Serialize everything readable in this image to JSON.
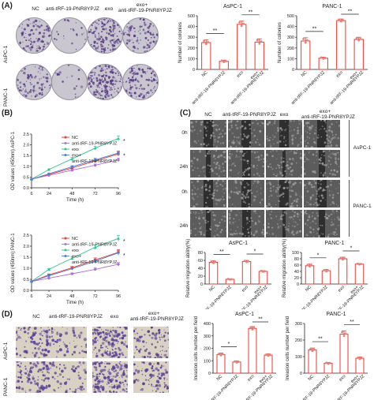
{
  "panels": {
    "A": "(A)",
    "B": "(B)",
    "C": "(C)",
    "D": "(D)"
  },
  "panel_a": {
    "columns": [
      "NC",
      "anti-tRF-19-PNR8YPJZ",
      "exo",
      "exo+",
      "anti-tRF-19-PNR8YPJZ"
    ],
    "rows": [
      "AsPC-1",
      "PANC-1"
    ]
  },
  "panel_c": {
    "columns": [
      "NC",
      "anti-tRF-19-PNR8YPJZ",
      "exo",
      "exo+",
      "anti-tRF-19-PNR8YPJZ"
    ],
    "times": [
      "0h",
      "24h",
      "0h",
      "24h"
    ],
    "cells": [
      "AsPC-1",
      "PANC-1"
    ]
  },
  "panel_d": {
    "columns": [
      "NC",
      "anti-tRF-19-PNR8YPJZ",
      "exo",
      "exo+",
      "anti-tRF-19-PNR8YPJZ"
    ],
    "rows": [
      "AsPC-1",
      "PANC-1"
    ]
  },
  "colors": {
    "bar": "#e83a30",
    "nc": "#e83a30",
    "anti": "#b06fd8",
    "exo": "#2ec48a",
    "combo": "#4a7fd6",
    "dot": "#e2857c"
  },
  "chart_data": [
    {
      "id": "colony-aspc1",
      "type": "bar",
      "title": "AsPC-1",
      "ylabel": "Number of colonies",
      "categories": [
        "NC",
        "anti-tRF-19-PNR8YPJZ",
        "exo",
        "exo+ anti-tRF-19-PNR8YPJZ"
      ],
      "values": [
        250,
        75,
        420,
        255
      ],
      "errors": [
        25,
        12,
        30,
        30
      ],
      "ylim": [
        0,
        500
      ],
      "yticks": [
        0,
        100,
        200,
        300,
        400,
        500
      ],
      "sig": [
        {
          "from": 0,
          "to": 1,
          "label": "**"
        },
        {
          "from": 2,
          "to": 3,
          "label": "**"
        }
      ]
    },
    {
      "id": "colony-panc1",
      "type": "bar",
      "title": "PANC-1",
      "ylabel": "Number of colonies",
      "categories": [
        "NC",
        "anti-tRF-19-PNR8YPJZ",
        "exo",
        "exo+ anti-tRF-19-PNR8YPJZ"
      ],
      "values": [
        265,
        105,
        455,
        280
      ],
      "errors": [
        30,
        10,
        15,
        20
      ],
      "ylim": [
        0,
        500
      ],
      "yticks": [
        0,
        100,
        200,
        300,
        400,
        500
      ],
      "sig": [
        {
          "from": 0,
          "to": 1,
          "label": "**"
        },
        {
          "from": 2,
          "to": 3,
          "label": "**"
        }
      ]
    },
    {
      "id": "growth-aspc1",
      "type": "line",
      "ylabel": "OD values (450nm) AsPC-1",
      "xlabel": "Time (h)",
      "x": [
        6,
        24,
        48,
        72,
        96
      ],
      "xlim": [
        6,
        96
      ],
      "ylim": [
        0,
        2.5
      ],
      "yticks": [
        0.0,
        0.5,
        1.0,
        1.5,
        2.0,
        2.5
      ],
      "legend": [
        "NC",
        "anti-tRF-19-PNR8YPJZ",
        "exo",
        "exo+",
        "anti-tRF-19-PNR8YPJZ"
      ],
      "series": [
        {
          "name": "NC",
          "values": [
            0.4,
            0.62,
            0.92,
            1.25,
            1.58
          ],
          "err": 0.1
        },
        {
          "name": "anti-tRF-19-PNR8YPJZ",
          "values": [
            0.4,
            0.58,
            0.82,
            1.05,
            1.3
          ],
          "err": 0.08
        },
        {
          "name": "exo",
          "values": [
            0.4,
            0.85,
            1.35,
            1.85,
            2.3
          ],
          "err": 0.12
        },
        {
          "name": "exo+ anti-tRF-19-PNR8YPJZ",
          "values": [
            0.4,
            0.65,
            0.98,
            1.3,
            1.62
          ],
          "err": 0.1
        }
      ],
      "sig": [
        "*",
        "*"
      ]
    },
    {
      "id": "growth-panc1",
      "type": "line",
      "ylabel": "OD values (450nm) PANC-1",
      "xlabel": "Time (h)",
      "x": [
        6,
        24,
        48,
        72,
        96
      ],
      "xlim": [
        6,
        96
      ],
      "ylim": [
        0,
        2.5
      ],
      "yticks": [
        0.0,
        0.5,
        1.0,
        1.5,
        2.0,
        2.5
      ],
      "legend": [
        "NC",
        "anti-tRF-19-PNR8YPJZ",
        "exo",
        "exo+",
        "anti-tRF-19-PNR8YPJZ"
      ],
      "series": [
        {
          "name": "NC",
          "values": [
            0.4,
            0.7,
            1.02,
            1.38,
            1.72
          ],
          "err": 0.12
        },
        {
          "name": "anti-tRF-19-PNR8YPJZ",
          "values": [
            0.4,
            0.55,
            0.75,
            0.95,
            1.18
          ],
          "err": 0.08
        },
        {
          "name": "exo",
          "values": [
            0.4,
            0.95,
            1.45,
            1.95,
            2.35
          ],
          "err": 0.14
        },
        {
          "name": "exo+ anti-tRF-19-PNR8YPJZ",
          "values": [
            0.4,
            0.66,
            0.98,
            1.32,
            1.7
          ],
          "err": 0.1
        }
      ],
      "sig": [
        "*",
        "*"
      ]
    },
    {
      "id": "migration-aspc1",
      "type": "bar",
      "title": "AsPC-1",
      "ylabel": "Relative migration ability(%)",
      "categories": [
        "NC",
        "anti-tRF-19-PNR8YPJZ",
        "exo",
        "exo+ anti-tRF-19-PNR8YPJZ"
      ],
      "values": [
        55,
        12,
        57,
        32
      ],
      "errors": [
        4,
        1.5,
        3,
        2
      ],
      "ylim": [
        0,
        80
      ],
      "yticks": [
        0,
        20,
        40,
        60,
        80
      ],
      "sig": [
        {
          "from": 0,
          "to": 1,
          "label": "**"
        },
        {
          "from": 2,
          "to": 3,
          "label": "*"
        }
      ]
    },
    {
      "id": "migration-panc1",
      "type": "bar",
      "title": "PANC-1",
      "ylabel": "Relative migration ability(%)",
      "categories": [
        "NC",
        "anti-tRF-19-PNR8YPJZ",
        "exo",
        "exo+ anti-tRF-19-PNR8YPJZ"
      ],
      "values": [
        58,
        42,
        80,
        63
      ],
      "errors": [
        5,
        4,
        5,
        2
      ],
      "ylim": [
        0,
        100
      ],
      "yticks": [
        0,
        20,
        40,
        60,
        80,
        100
      ],
      "sig": [
        {
          "from": 0,
          "to": 1,
          "label": "*"
        },
        {
          "from": 2,
          "to": 3,
          "label": "*"
        }
      ]
    },
    {
      "id": "invasion-aspc1",
      "type": "bar",
      "title": "AsPC-1",
      "ylabel": "Invasion cells number per field",
      "categories": [
        "NC",
        "anti-tRF-19-PNR8YPJZ",
        "exo",
        "exo+ anti-tRF-19-PNR8YPJZ"
      ],
      "values": [
        150,
        90,
        360,
        145
      ],
      "errors": [
        12,
        8,
        15,
        10
      ],
      "ylim": [
        0,
        400
      ],
      "yticks": [
        0,
        100,
        200,
        300,
        400
      ],
      "sig": [
        {
          "from": 0,
          "to": 1,
          "label": "*"
        },
        {
          "from": 2,
          "to": 3,
          "label": "**"
        }
      ]
    },
    {
      "id": "invasion-panc1",
      "type": "bar",
      "title": "PANC-1",
      "ylabel": "Invasion cells number per field",
      "categories": [
        "NC",
        "anti-tRF-19-PNR8YPJZ",
        "exo",
        "exo+ anti-tRF-19-PNR8YPJZ"
      ],
      "values": [
        140,
        60,
        235,
        90
      ],
      "errors": [
        12,
        5,
        20,
        8
      ],
      "ylim": [
        0,
        300
      ],
      "yticks": [
        0,
        100,
        200,
        300
      ],
      "sig": [
        {
          "from": 0,
          "to": 1,
          "label": "**"
        },
        {
          "from": 2,
          "to": 3,
          "label": "**"
        }
      ]
    }
  ]
}
